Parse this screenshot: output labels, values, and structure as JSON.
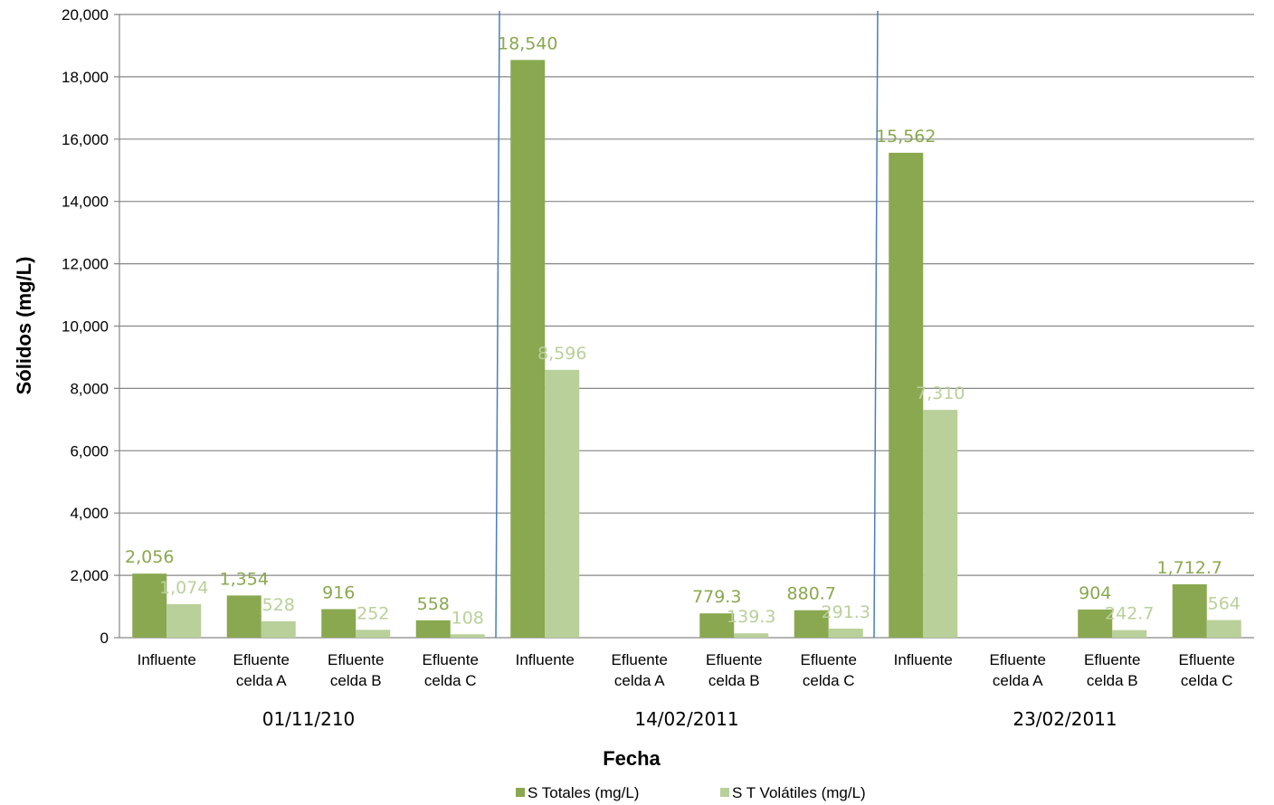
{
  "chart_data": {
    "type": "bar",
    "title": "",
    "xlabel": "Fecha",
    "ylabel": "Sólidos  (mg/L)",
    "ylim": [
      0,
      20000
    ],
    "yticks": [
      "0",
      "2,000",
      "4,000",
      "6,000",
      "8,000",
      "10,000",
      "12,000",
      "14,000",
      "16,000",
      "18,000",
      "20,000"
    ],
    "grid": true,
    "legend_position": "bottom",
    "categories": [
      [
        "Influente"
      ],
      [
        "Efluente",
        "celda A"
      ],
      [
        "Efluente",
        "celda B"
      ],
      [
        "Efluente",
        "celda C"
      ],
      [
        "Influente"
      ],
      [
        "Efluente",
        "celda A"
      ],
      [
        "Efluente",
        "celda B"
      ],
      [
        "Efluente",
        "celda C"
      ],
      [
        "Influente"
      ],
      [
        "Efluente",
        "celda A"
      ],
      [
        "Efluente",
        "celda B"
      ],
      [
        "Efluente",
        "celda C"
      ]
    ],
    "groups": [
      "01/11/210",
      "14/02/2011",
      "23/02/2011"
    ],
    "series": [
      {
        "name": "S Totales (mg/L)",
        "color": "#8aa84f",
        "values": [
          2056,
          1354,
          916,
          558,
          18540,
          null,
          779.3,
          880.7,
          15562,
          null,
          904,
          1712.7
        ],
        "labels": [
          "2,056",
          "1,354",
          "916",
          "558",
          "18,540",
          "",
          "779.3",
          "880.7",
          "15,562",
          "",
          "904",
          "1,712.7"
        ]
      },
      {
        "name": "S T Volátiles (mg/L)",
        "color": "#b9d09a",
        "values": [
          1074,
          528,
          252,
          108,
          8596,
          null,
          139.3,
          291.3,
          7310,
          null,
          242.7,
          564
        ],
        "labels": [
          "1,074",
          "528",
          "252",
          "108",
          "8,596",
          "",
          "139.3",
          "291.3",
          "7,310",
          "",
          "242.7",
          "564"
        ]
      }
    ],
    "separator_color": "#4a7ebb",
    "gridline_color": "#868686"
  }
}
